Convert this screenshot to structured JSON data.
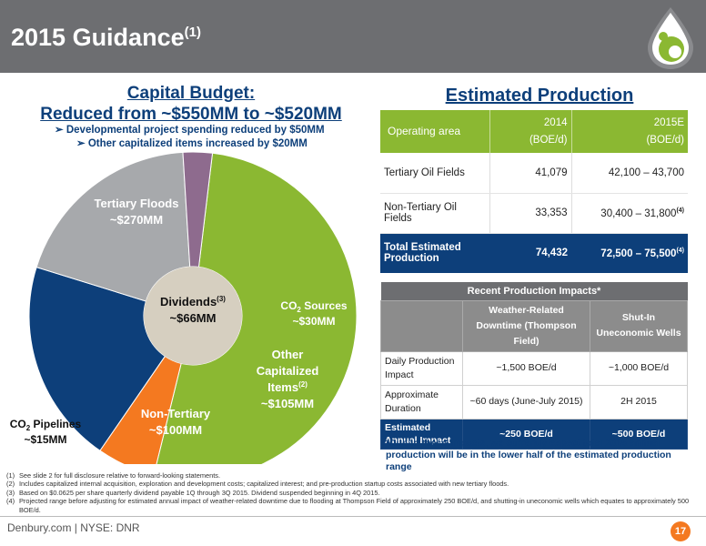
{
  "header": {
    "title": "2015 Guidance",
    "title_sup": "(1)"
  },
  "capital": {
    "title_line1": "Capital Budget:",
    "title_line2": "Reduced from ~$550MM to ~$520MM",
    "bullets": [
      "Developmental project spending reduced by $50MM",
      "Other capitalized items increased by $20MM"
    ]
  },
  "chart_data": {
    "type": "pie",
    "categories": [
      "Tertiary Floods",
      "CO2 Sources",
      "Other Capitalized Items",
      "Non-Tertiary",
      "CO2 Pipelines"
    ],
    "values": [
      270,
      30,
      105,
      100,
      15
    ],
    "units": "$MM",
    "colors": [
      "#8bb832",
      "#f47920",
      "#0d3f7a",
      "#a7a9ac",
      "#8e6b8e"
    ],
    "center": {
      "label": "Dividends",
      "sup": "(3)",
      "value": "~$66MM",
      "color": "#d6cfc0"
    },
    "labels": {
      "tertiary_floods": [
        "Tertiary Floods",
        "~$270MM"
      ],
      "co2_sources": [
        "CO",
        "2",
        " Sources",
        "~$30MM"
      ],
      "other": [
        "Other",
        "Capitalized",
        "Items",
        "(2)",
        "~$105MM"
      ],
      "non_tertiary": [
        "Non-Tertiary",
        "~$100MM"
      ],
      "co2_pipelines": [
        "CO",
        "2",
        " Pipelines",
        "~$15MM"
      ]
    }
  },
  "production": {
    "title": "Estimated Production",
    "header": {
      "area": "Operating area",
      "y2014": "2014",
      "y2015": "2015E",
      "unit1": "(BOE/d)",
      "unit2": "(BOE/d)"
    },
    "rows": [
      {
        "area": "Tertiary Oil Fields",
        "v2014": "41,079",
        "v2015": "42,100 – 43,700",
        "sup": ""
      },
      {
        "area": "Non-Tertiary Oil Fields",
        "v2014": "33,353",
        "v2015": "30,400 – 31,800",
        "sup": "(4)"
      }
    ],
    "total": {
      "area": "Total Estimated Production",
      "v2014": "74,432",
      "v2015": "72,500 – 75,500",
      "sup": "(4)"
    }
  },
  "impacts": {
    "caption": "Recent Production Impacts*",
    "col1": "Weather-Related Downtime (Thompson Field)",
    "col2": "Shut-In Uneconomic Wells",
    "rows": [
      {
        "label": "Daily Production Impact",
        "c1": "~1,500 BOE/d",
        "c2": "~1,000 BOE/d"
      },
      {
        "label": "Approximate Duration",
        "c1": "~60 days (June-July 2015)",
        "c2": "2H 2015"
      }
    ],
    "total": {
      "label": "Estimated Annual Impact",
      "c1": "~250 BOE/d",
      "c2": "~500 BOE/d"
    },
    "note": "*Due to these impacts, we currently expect total 2015 annual production will be in the lower half of the estimated production range"
  },
  "footnotes": [
    {
      "num": "(1)",
      "text": "See slide 2 for full disclosure relative to forward-looking statements."
    },
    {
      "num": "(2)",
      "text": "Includes capitalized internal acquisition, exploration and development costs; capitalized interest; and pre-production startup costs associated with new tertiary floods."
    },
    {
      "num": "(3)",
      "text": "Based on $0.0625 per share quarterly dividend payable 1Q through 3Q 2015. Dividend suspended beginning in 4Q 2015."
    },
    {
      "num": "(4)",
      "text": "Projected range before adjusting for estimated annual impact of weather-related downtime due to flooding at Thompson Field of approximately 250 BOE/d, and shutting-in uneconomic wells which equates to approximately 500 BOE/d."
    }
  ],
  "footer": {
    "text": "Denbury.com | NYSE: DNR",
    "page": "17"
  },
  "colors": {
    "brand_blue": "#0d3f7a",
    "green": "#8bb832",
    "orange": "#f47920",
    "gray": "#6d6e71"
  }
}
